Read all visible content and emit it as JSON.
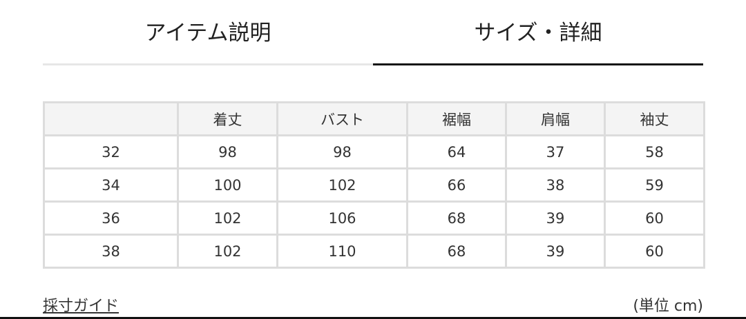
{
  "tabs": [
    {
      "label": "アイテム説明",
      "active": false
    },
    {
      "label": "サイズ・詳細",
      "active": true
    }
  ],
  "size_table": {
    "headers": [
      "",
      "着丈",
      "バスト",
      "裾幅",
      "肩幅",
      "袖丈"
    ],
    "rows": [
      [
        "32",
        "98",
        "98",
        "64",
        "37",
        "58"
      ],
      [
        "34",
        "100",
        "102",
        "66",
        "38",
        "59"
      ],
      [
        "36",
        "102",
        "106",
        "68",
        "39",
        "60"
      ],
      [
        "38",
        "102",
        "110",
        "68",
        "39",
        "60"
      ]
    ]
  },
  "footer": {
    "guide_link": "採寸ガイド",
    "unit_note": "(単位 cm)"
  }
}
